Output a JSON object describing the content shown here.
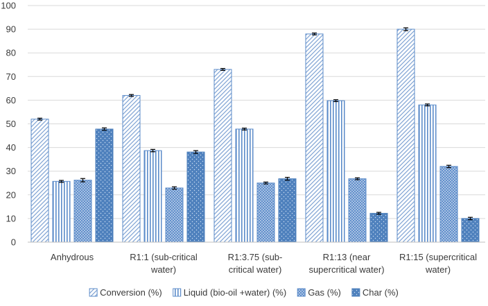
{
  "chart_data": {
    "type": "bar",
    "title": "",
    "xlabel": "",
    "ylabel": "",
    "ylim": [
      0,
      100
    ],
    "yticks": [
      0,
      10,
      20,
      30,
      40,
      50,
      60,
      70,
      80,
      90,
      100
    ],
    "grid": true,
    "legend_position": "bottom",
    "error_bars": true,
    "categories": [
      [
        "Anhydrous"
      ],
      [
        "R1:1 (sub-critical",
        "water)"
      ],
      [
        "R1:3.75 (sub-",
        "critical water)"
      ],
      [
        "R1:13 (near",
        "supercritical water)"
      ],
      [
        "R1:15 (supercritical",
        "water)"
      ]
    ],
    "series": [
      {
        "name": "Conversion (%)",
        "pattern": "diagonal-hatch",
        "color": "#5b8bc9",
        "values": [
          52,
          62,
          73,
          88,
          90
        ],
        "errors": [
          0.4,
          0.4,
          0.4,
          0.4,
          0.6
        ]
      },
      {
        "name": "Liquid (bio-oil +water) (%)",
        "pattern": "vertical-lines",
        "color": "#5b8bc9",
        "values": [
          25.7,
          38.7,
          47.8,
          59.8,
          58.0
        ],
        "errors": [
          0.4,
          0.5,
          0.4,
          0.4,
          0.4
        ]
      },
      {
        "name": "Gas (%)",
        "pattern": "cross-hatch",
        "color": "#5b8bc9",
        "values": [
          26.2,
          22.9,
          25.0,
          26.8,
          32.0
        ],
        "errors": [
          0.7,
          0.5,
          0.4,
          0.4,
          0.5
        ]
      },
      {
        "name": "Char (%)",
        "pattern": "solid-dotted",
        "color": "#4f81bd",
        "values": [
          47.8,
          38.1,
          26.8,
          12.2,
          10.0
        ],
        "errors": [
          0.5,
          0.6,
          0.6,
          0.4,
          0.5
        ]
      }
    ]
  }
}
